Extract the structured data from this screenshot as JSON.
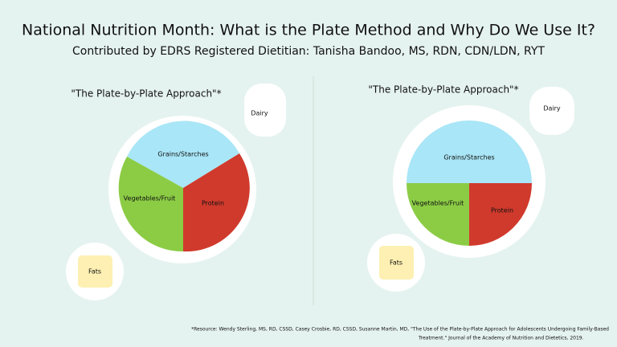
{
  "header": {
    "title": "National Nutrition Month: What is the Plate Method and Why Do We Use It?",
    "subtitle": "Contributed by EDRS Registered Dietitian: Tanisha Bandoo, MS, RDN, CDN/LDN, RYT"
  },
  "plates": [
    {
      "heading": "\"The Plate-by-Plate Approach\"*",
      "dairy": "Dairy",
      "grains": "Grains/Starches",
      "vegetables": "Vegetables/Fruit",
      "protein": "Protein",
      "fats": "Fats"
    },
    {
      "heading": "\"The Plate-by-Plate Approach\"*",
      "dairy": "Dairy",
      "grains": "Grains/Starches",
      "vegetables": "Vegetables/Fruit",
      "protein": "Protein",
      "fats": "Fats"
    }
  ],
  "footnote": {
    "line1": "*Resource:  Wendy Sterling, MS, RD, CSSD, Casey Crosbie, RD, CSSD, Susanne Martin, MD, \"The Use of the Plate-by-Plate Approach for Adolescents Undergoing Family-Based",
    "line2": "Treatment.\" Journal of the Academy of Nutrition and Dietetics, 2019."
  }
}
